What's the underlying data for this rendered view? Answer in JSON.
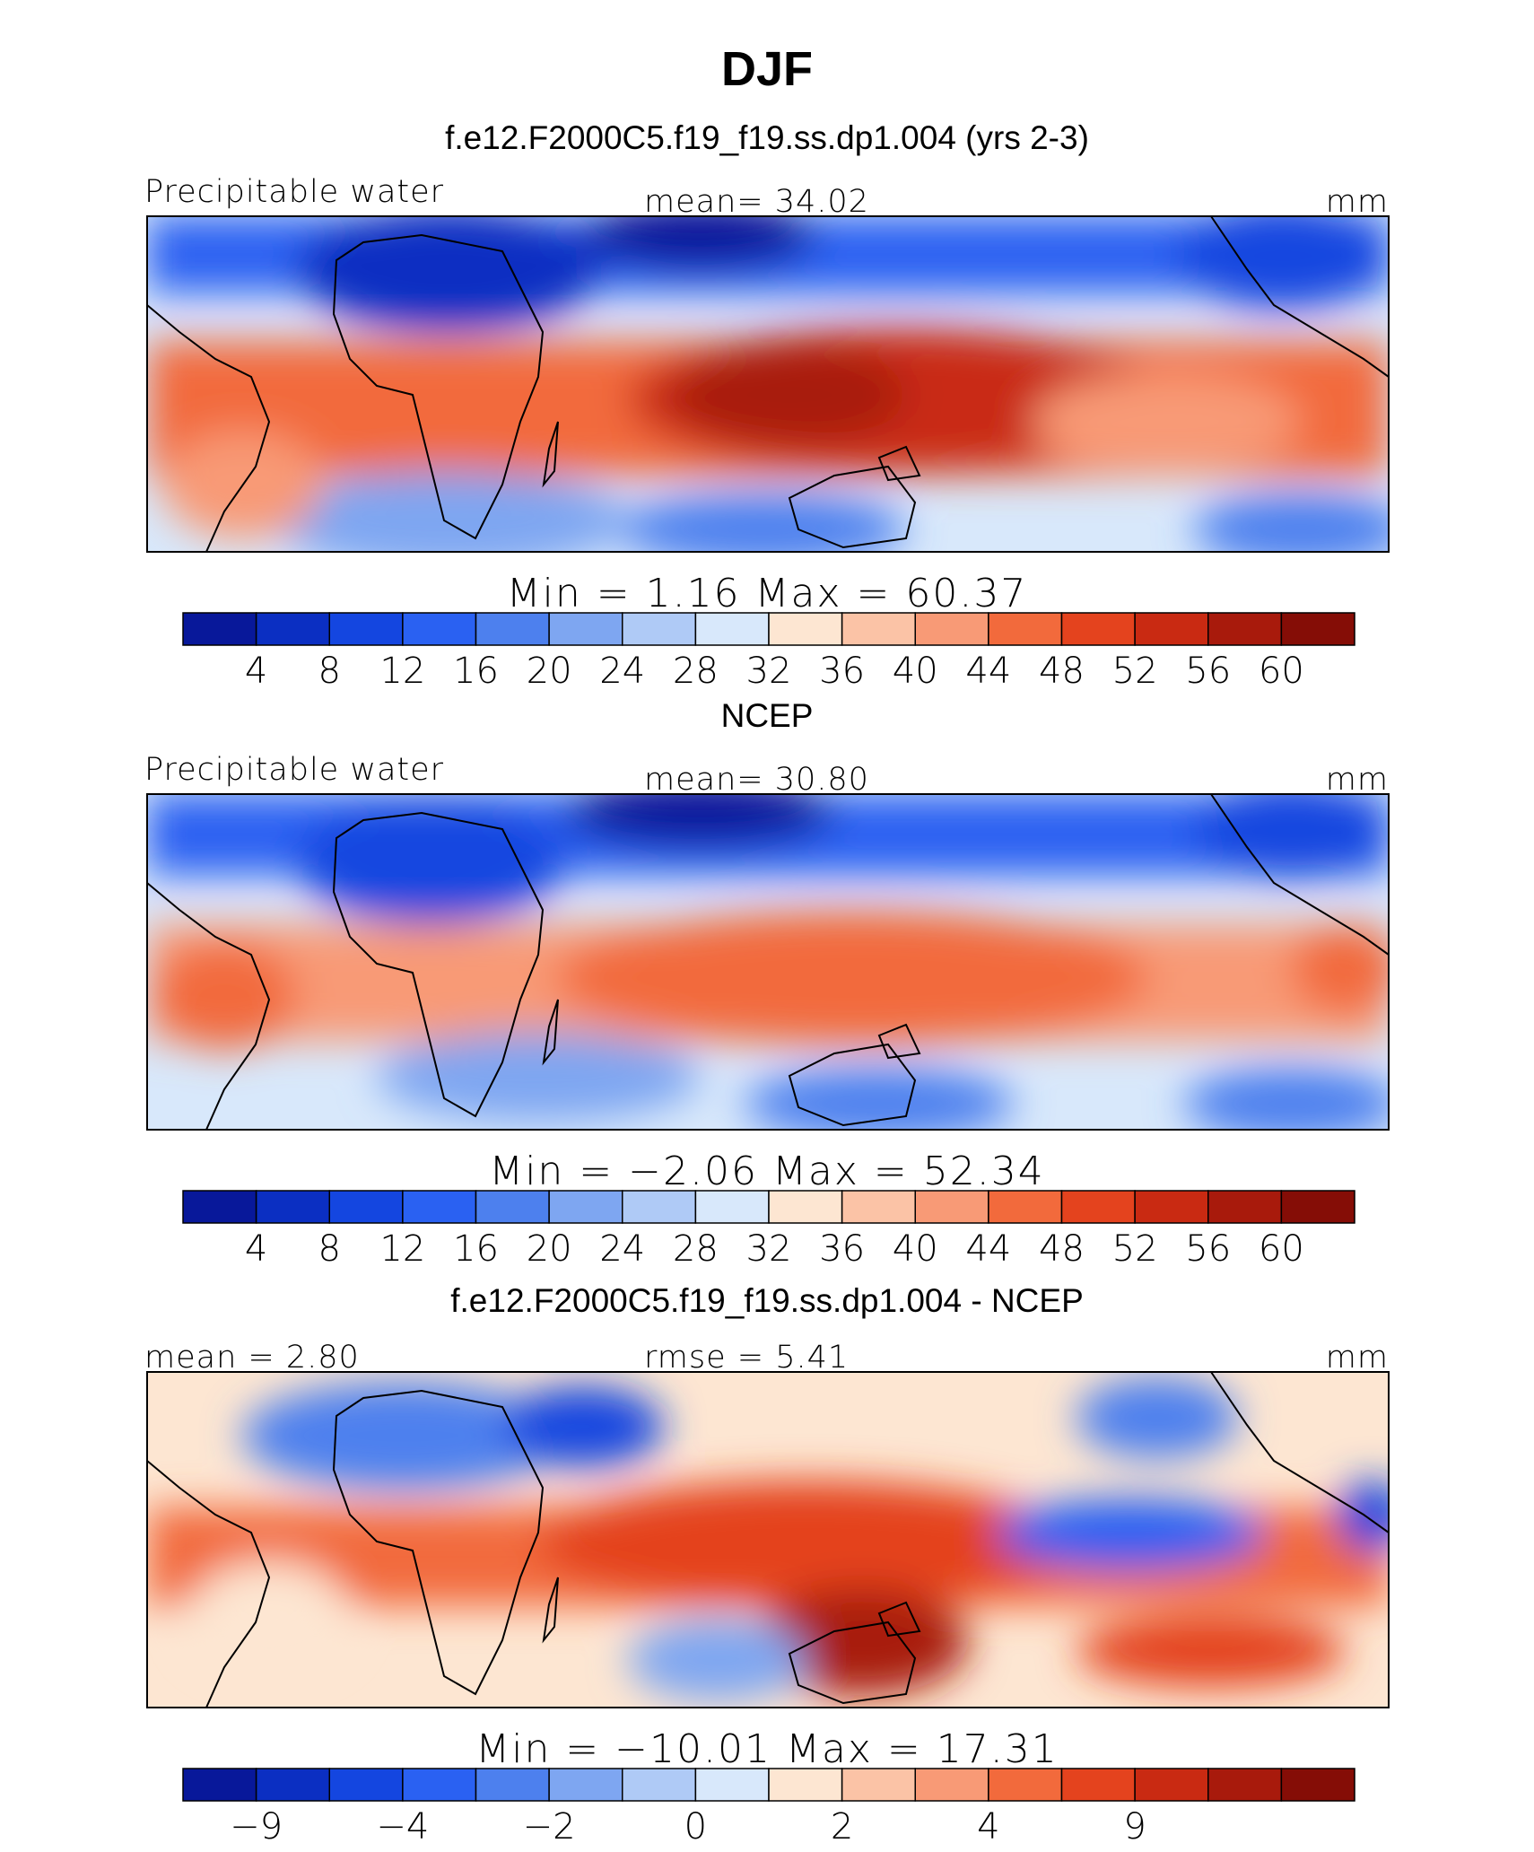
{
  "figure": {
    "title": "DJF",
    "units": "mm"
  },
  "palette": [
    "#08189a",
    "#0b2fc2",
    "#1446e0",
    "#2a61f2",
    "#4d80ee",
    "#7ea6f1",
    "#afcaf6",
    "#d8e8fb",
    "#fde6d2",
    "#fbc3a6",
    "#f89a76",
    "#f26a3c",
    "#e4431e",
    "#c92a12",
    "#a81a0c",
    "#850d06"
  ],
  "chart_data": [
    {
      "type": "heatmap",
      "title": "f.e12.F2000C5.f19_f19.ss.dp1.004 (yrs 2-3)",
      "variable_label": "Precipitable water",
      "stat_label": "mean=  34.02",
      "units": "mm",
      "minmax_label": "Min =    1.16 Max =   60.37",
      "min": 1.16,
      "max": 60.37,
      "mean": 34.02,
      "levels": [
        "4",
        "8",
        "12",
        "16",
        "20",
        "24",
        "28",
        "32",
        "36",
        "40",
        "44",
        "48",
        "52",
        "56",
        "60"
      ]
    },
    {
      "type": "heatmap",
      "title": "NCEP",
      "variable_label": "Precipitable water",
      "stat_label": "mean=  30.80",
      "units": "mm",
      "minmax_label": "Min =  −2.06 Max =   52.34",
      "min": -2.06,
      "max": 52.34,
      "mean": 30.8,
      "levels": [
        "4",
        "8",
        "12",
        "16",
        "20",
        "24",
        "28",
        "32",
        "36",
        "40",
        "44",
        "48",
        "52",
        "56",
        "60"
      ]
    },
    {
      "type": "heatmap",
      "title": "f.e12.F2000C5.f19_f19.ss.dp1.004 - NCEP",
      "variable_label": "mean =    2.80",
      "stat_label": "rmse =    5.41",
      "units": "mm",
      "minmax_label": "Min = −10.01 Max =   17.31",
      "min": -10.01,
      "max": 17.31,
      "mean": 2.8,
      "rmse": 5.41,
      "levels": [
        "−9",
        "",
        "−4",
        "",
        "−2",
        "",
        "0",
        "",
        "2",
        "",
        "4",
        "",
        "9",
        "",
        ""
      ]
    }
  ]
}
